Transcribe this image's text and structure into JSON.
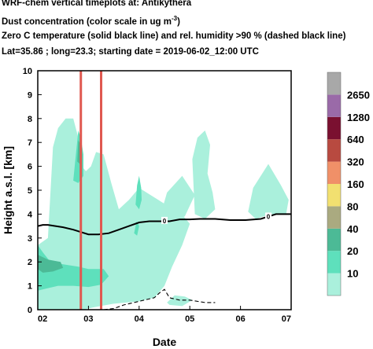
{
  "header": {
    "line1": "WRF-chem vertical timeplots at: Antikythera",
    "line2_main": "Dust concentration (color scale in ug m",
    "line2_sup": "-3",
    "line2_end": ")",
    "line3": "Zero C  temperature (solid black line) and  rel. humidity >90 % (dashed black line)",
    "line4": "Lat=35.86 ; long=23.3; starting date = 2019-06-02_12:00 UTC"
  },
  "chart_data": {
    "type": "area",
    "title": "WRF-chem vertical timeplots at: Antikythera",
    "xlabel": "Date",
    "ylabel": "Height a.s.l. [km]",
    "x_ticks": [
      "02",
      "03",
      "04",
      "05",
      "06",
      "07"
    ],
    "y_ticks": [
      "0",
      "1",
      "2",
      "3",
      "4",
      "5",
      "6",
      "7",
      "8",
      "9",
      "10"
    ],
    "xlim": [
      2.0,
      7.0
    ],
    "ylim": [
      0,
      10
    ],
    "legend": {
      "placement": "right",
      "levels": [
        "10",
        "20",
        "40",
        "80",
        "160",
        "320",
        "640",
        "1280",
        "2650"
      ],
      "colors": [
        "#aaf0dc",
        "#5ee0bc",
        "#4cba96",
        "#aaaa80",
        "#f2e070",
        "#f09068",
        "#b84a40",
        "#7a1030",
        "#9a6aa8",
        "#a8a8a8"
      ]
    },
    "dust_regions": [
      {
        "level": "10",
        "points": [
          [
            2.0,
            0.0
          ],
          [
            2.0,
            2.7
          ],
          [
            2.2,
            3.0
          ],
          [
            2.3,
            6.8
          ],
          [
            2.4,
            7.6
          ],
          [
            2.55,
            8.0
          ],
          [
            2.7,
            8.0
          ],
          [
            2.8,
            7.2
          ],
          [
            2.87,
            6.0
          ],
          [
            2.95,
            5.8
          ],
          [
            3.05,
            6.0
          ],
          [
            3.15,
            6.6
          ],
          [
            3.3,
            6.5
          ],
          [
            3.45,
            5.3
          ],
          [
            3.6,
            4.2
          ],
          [
            3.8,
            4.6
          ],
          [
            4.0,
            5.1
          ],
          [
            4.3,
            4.7
          ],
          [
            4.45,
            4.5
          ],
          [
            4.6,
            4.3
          ],
          [
            4.8,
            4.1
          ],
          [
            5.0,
            3.6
          ],
          [
            4.85,
            2.7
          ],
          [
            4.65,
            1.8
          ],
          [
            4.5,
            1.0
          ],
          [
            4.3,
            0.5
          ],
          [
            4.0,
            0.35
          ],
          [
            3.5,
            0.25
          ],
          [
            3.1,
            0.1
          ],
          [
            2.9,
            0.0
          ]
        ]
      },
      {
        "level": "10",
        "points": [
          [
            4.4,
            3.8
          ],
          [
            4.55,
            4.9
          ],
          [
            4.85,
            5.6
          ],
          [
            5.1,
            4.8
          ],
          [
            4.9,
            3.9
          ]
        ]
      },
      {
        "level": "10",
        "points": [
          [
            5.05,
            6.3
          ],
          [
            5.15,
            7.2
          ],
          [
            5.3,
            7.5
          ],
          [
            5.4,
            6.9
          ],
          [
            5.35,
            5.7
          ],
          [
            5.45,
            4.9
          ],
          [
            5.5,
            4.2
          ],
          [
            5.3,
            3.8
          ],
          [
            5.1,
            4.0
          ]
        ]
      },
      {
        "level": "10",
        "points": [
          [
            6.15,
            4.1
          ],
          [
            6.25,
            5.1
          ],
          [
            6.55,
            6.1
          ],
          [
            6.8,
            5.2
          ],
          [
            6.95,
            4.6
          ],
          [
            6.9,
            4.0
          ],
          [
            6.6,
            4.0
          ],
          [
            6.3,
            3.8
          ]
        ]
      },
      {
        "level": "10",
        "points": [
          [
            4.55,
            0.3
          ],
          [
            4.7,
            0.6
          ],
          [
            4.9,
            0.55
          ],
          [
            5.05,
            0.4
          ],
          [
            4.85,
            0.15
          ],
          [
            4.6,
            0.2
          ]
        ]
      },
      {
        "level": "20",
        "points": [
          [
            2.0,
            0.8
          ],
          [
            2.0,
            2.7
          ],
          [
            2.1,
            2.4
          ],
          [
            2.25,
            2.0
          ],
          [
            2.5,
            1.9
          ],
          [
            2.8,
            1.8
          ],
          [
            3.0,
            1.7
          ],
          [
            3.3,
            1.7
          ],
          [
            3.4,
            1.4
          ],
          [
            3.25,
            1.05
          ],
          [
            3.0,
            0.95
          ],
          [
            2.7,
            1.0
          ],
          [
            2.4,
            1.0
          ],
          [
            2.2,
            0.9
          ]
        ]
      },
      {
        "level": "20",
        "points": [
          [
            2.7,
            5.4
          ],
          [
            2.8,
            7.5
          ],
          [
            2.85,
            7.2
          ],
          [
            2.9,
            6.5
          ],
          [
            2.9,
            5.6
          ],
          [
            2.8,
            5.3
          ]
        ]
      },
      {
        "level": "20",
        "points": [
          [
            3.93,
            4.4
          ],
          [
            3.96,
            5.2
          ],
          [
            4.0,
            5.6
          ],
          [
            4.04,
            5.1
          ],
          [
            4.05,
            4.6
          ],
          [
            4.0,
            4.2
          ]
        ]
      },
      {
        "level": "20",
        "points": [
          [
            3.9,
            3.2
          ],
          [
            3.95,
            3.7
          ],
          [
            4.0,
            3.5
          ],
          [
            3.96,
            3.1
          ]
        ]
      },
      {
        "level": "40",
        "points": [
          [
            2.0,
            1.7
          ],
          [
            2.0,
            2.3
          ],
          [
            2.2,
            2.1
          ],
          [
            2.45,
            2.0
          ],
          [
            2.5,
            1.75
          ],
          [
            2.3,
            1.6
          ],
          [
            2.1,
            1.55
          ]
        ]
      },
      {
        "level": "40",
        "points": [
          [
            2.78,
            6.2
          ],
          [
            2.8,
            7.1
          ],
          [
            2.85,
            6.9
          ],
          [
            2.87,
            6.4
          ],
          [
            2.83,
            6.1
          ]
        ]
      }
    ],
    "series": [
      {
        "name": "Zero C temperature",
        "style": "solid",
        "x": [
          2.0,
          2.1,
          2.2,
          2.35,
          2.5,
          2.7,
          2.85,
          3.0,
          3.2,
          3.4,
          3.6,
          3.8,
          4.0,
          4.2,
          4.4,
          4.6,
          4.8,
          5.0,
          5.2,
          5.5,
          5.8,
          6.1,
          6.4,
          6.7,
          7.0
        ],
        "y": [
          3.5,
          3.55,
          3.55,
          3.5,
          3.45,
          3.35,
          3.25,
          3.15,
          3.15,
          3.2,
          3.35,
          3.5,
          3.65,
          3.7,
          3.7,
          3.7,
          3.78,
          3.78,
          3.8,
          3.8,
          3.75,
          3.75,
          3.8,
          4.0,
          4.0
        ]
      },
      {
        "name": "rel. humidity >90 %",
        "style": "dashed",
        "x": [
          3.3,
          3.5,
          3.7,
          3.9,
          4.1,
          4.3,
          4.4,
          4.5,
          4.6,
          4.8,
          5.0,
          5.3,
          5.5
        ],
        "y": [
          0.0,
          0.05,
          0.2,
          0.3,
          0.4,
          0.5,
          0.7,
          0.85,
          0.5,
          0.4,
          0.4,
          0.3,
          0.3
        ]
      }
    ],
    "contour_labels": [
      {
        "x": 4.5,
        "y": 3.72,
        "text": "0"
      },
      {
        "x": 6.55,
        "y": 3.9,
        "text": "0"
      }
    ],
    "markers": [
      {
        "x": 2.85,
        "color": "#e05850"
      },
      {
        "x": 3.25,
        "color": "#e05850"
      }
    ]
  }
}
